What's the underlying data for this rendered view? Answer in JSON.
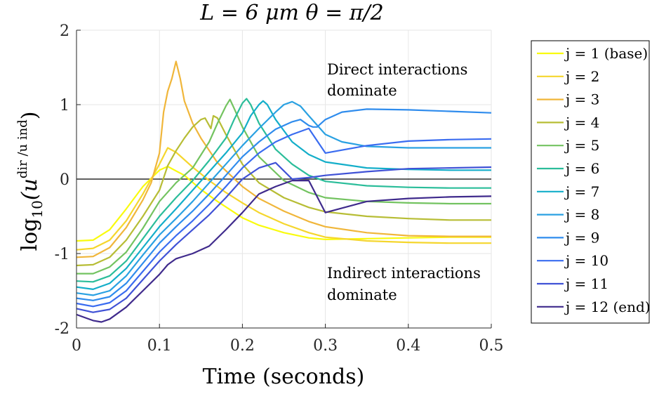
{
  "chart_data": {
    "type": "line",
    "title": "L = 6 μm    θ = π/2",
    "xlabel": "Time (seconds)",
    "ylabel_main": "log",
    "ylabel_sub": "10",
    "ylabel_rest": "(u",
    "ylabel_sup": "dir /u ind",
    "ylabel_close": ")",
    "xlim": [
      0,
      0.5
    ],
    "ylim": [
      -2,
      2
    ],
    "xticks": [
      "0",
      "0.1",
      "0.2",
      "0.3",
      "0.4",
      "0.5"
    ],
    "yticks": [
      "-2",
      "-1",
      "0",
      "1",
      "2"
    ],
    "grid": true,
    "legend_position": "outside-right",
    "annotations": {
      "direct_line1": "Direct interactions",
      "direct_line2": "dominate",
      "indirect_line1": "Indirect interactions",
      "indirect_line2": "dominate"
    },
    "series": [
      {
        "name": "j = 1 (base)",
        "color": "#f9fb0e",
        "x": [
          0,
          0.02,
          0.04,
          0.06,
          0.08,
          0.1,
          0.11,
          0.13,
          0.15,
          0.17,
          0.2,
          0.22,
          0.25,
          0.28,
          0.3,
          0.35,
          0.4,
          0.45,
          0.5
        ],
        "y": [
          -0.83,
          -0.82,
          -0.68,
          -0.4,
          -0.1,
          0.12,
          0.17,
          0.05,
          -0.14,
          -0.3,
          -0.52,
          -0.62,
          -0.72,
          -0.79,
          -0.81,
          -0.8,
          -0.79,
          -0.78,
          -0.78
        ]
      },
      {
        "name": "j = 2",
        "color": "#f5d62d",
        "x": [
          0,
          0.02,
          0.04,
          0.06,
          0.08,
          0.1,
          0.11,
          0.12,
          0.14,
          0.16,
          0.18,
          0.2,
          0.22,
          0.25,
          0.28,
          0.3,
          0.35,
          0.4,
          0.45,
          0.5
        ],
        "y": [
          -0.95,
          -0.93,
          -0.82,
          -0.56,
          -0.2,
          0.2,
          0.42,
          0.36,
          0.16,
          -0.02,
          -0.18,
          -0.32,
          -0.45,
          -0.6,
          -0.72,
          -0.78,
          -0.83,
          -0.85,
          -0.86,
          -0.86
        ]
      },
      {
        "name": "j = 3",
        "color": "#f0b63a",
        "x": [
          0,
          0.02,
          0.04,
          0.06,
          0.08,
          0.09,
          0.1,
          0.105,
          0.11,
          0.115,
          0.12,
          0.125,
          0.13,
          0.14,
          0.15,
          0.17,
          0.2,
          0.22,
          0.25,
          0.28,
          0.3,
          0.35,
          0.4,
          0.45,
          0.5
        ],
        "y": [
          -1.05,
          -1.04,
          -0.92,
          -0.65,
          -0.28,
          -0.05,
          0.35,
          0.9,
          1.18,
          1.35,
          1.58,
          1.35,
          1.05,
          0.75,
          0.55,
          0.22,
          -0.1,
          -0.26,
          -0.43,
          -0.57,
          -0.64,
          -0.72,
          -0.76,
          -0.77,
          -0.77
        ]
      },
      {
        "name": "j = 4",
        "color": "#b7bd35",
        "x": [
          0,
          0.02,
          0.04,
          0.06,
          0.08,
          0.1,
          0.11,
          0.12,
          0.13,
          0.14,
          0.15,
          0.155,
          0.16,
          0.162,
          0.165,
          0.17,
          0.18,
          0.2,
          0.22,
          0.25,
          0.28,
          0.3,
          0.35,
          0.4,
          0.45,
          0.5
        ],
        "y": [
          -1.16,
          -1.15,
          -1.05,
          -0.82,
          -0.5,
          -0.15,
          0.18,
          0.38,
          0.55,
          0.7,
          0.8,
          0.82,
          0.72,
          0.68,
          0.85,
          0.82,
          0.6,
          0.2,
          -0.05,
          -0.25,
          -0.38,
          -0.44,
          -0.5,
          -0.53,
          -0.55,
          -0.55
        ]
      },
      {
        "name": "j = 5",
        "color": "#73c360",
        "x": [
          0,
          0.02,
          0.04,
          0.06,
          0.08,
          0.1,
          0.12,
          0.14,
          0.16,
          0.17,
          0.18,
          0.185,
          0.19,
          0.2,
          0.22,
          0.25,
          0.28,
          0.3,
          0.35,
          0.4,
          0.45,
          0.5
        ],
        "y": [
          -1.27,
          -1.27,
          -1.18,
          -0.98,
          -0.66,
          -0.3,
          -0.05,
          0.15,
          0.5,
          0.75,
          0.98,
          1.07,
          0.95,
          0.7,
          0.3,
          -0.02,
          -0.18,
          -0.25,
          -0.3,
          -0.32,
          -0.33,
          -0.33
        ]
      },
      {
        "name": "j = 6",
        "color": "#2bbd9a",
        "x": [
          0,
          0.02,
          0.04,
          0.06,
          0.08,
          0.1,
          0.12,
          0.14,
          0.16,
          0.18,
          0.19,
          0.2,
          0.205,
          0.21,
          0.22,
          0.24,
          0.26,
          0.28,
          0.3,
          0.35,
          0.4,
          0.45,
          0.5
        ],
        "y": [
          -1.37,
          -1.38,
          -1.3,
          -1.1,
          -0.8,
          -0.5,
          -0.25,
          -0.02,
          0.25,
          0.55,
          0.8,
          1.02,
          1.08,
          1.0,
          0.75,
          0.4,
          0.2,
          0.05,
          -0.03,
          -0.09,
          -0.11,
          -0.12,
          -0.12
        ]
      },
      {
        "name": "j = 7",
        "color": "#13aec9",
        "x": [
          0,
          0.02,
          0.04,
          0.06,
          0.08,
          0.1,
          0.12,
          0.14,
          0.16,
          0.18,
          0.2,
          0.21,
          0.22,
          0.225,
          0.23,
          0.24,
          0.26,
          0.28,
          0.3,
          0.35,
          0.4,
          0.45,
          0.5
        ],
        "y": [
          -1.45,
          -1.48,
          -1.4,
          -1.2,
          -0.92,
          -0.64,
          -0.4,
          -0.15,
          0.1,
          0.35,
          0.62,
          0.85,
          1.0,
          1.05,
          1.0,
          0.8,
          0.5,
          0.33,
          0.23,
          0.15,
          0.13,
          0.12,
          0.12
        ]
      },
      {
        "name": "j = 8",
        "color": "#2aa1e2",
        "x": [
          0,
          0.02,
          0.04,
          0.06,
          0.08,
          0.1,
          0.12,
          0.14,
          0.16,
          0.18,
          0.2,
          0.22,
          0.24,
          0.25,
          0.26,
          0.27,
          0.28,
          0.3,
          0.32,
          0.35,
          0.4,
          0.45,
          0.5
        ],
        "y": [
          -1.53,
          -1.56,
          -1.5,
          -1.3,
          -1.02,
          -0.75,
          -0.53,
          -0.3,
          -0.05,
          0.2,
          0.45,
          0.68,
          0.9,
          1.0,
          1.04,
          0.98,
          0.85,
          0.6,
          0.5,
          0.44,
          0.42,
          0.42,
          0.42
        ]
      },
      {
        "name": "j = 9",
        "color": "#2f8ced",
        "x": [
          0,
          0.02,
          0.04,
          0.06,
          0.08,
          0.1,
          0.12,
          0.14,
          0.16,
          0.18,
          0.2,
          0.22,
          0.24,
          0.26,
          0.27,
          0.28,
          0.285,
          0.29,
          0.3,
          0.32,
          0.35,
          0.4,
          0.45,
          0.5
        ],
        "y": [
          -1.6,
          -1.63,
          -1.58,
          -1.4,
          -1.13,
          -0.86,
          -0.64,
          -0.43,
          -0.2,
          0.05,
          0.3,
          0.5,
          0.67,
          0.77,
          0.8,
          0.72,
          0.7,
          0.7,
          0.8,
          0.9,
          0.94,
          0.93,
          0.91,
          0.89
        ]
      },
      {
        "name": "j = 10",
        "color": "#3a6cf0",
        "x": [
          0,
          0.02,
          0.04,
          0.06,
          0.08,
          0.1,
          0.12,
          0.14,
          0.16,
          0.18,
          0.2,
          0.22,
          0.24,
          0.26,
          0.28,
          0.3,
          0.35,
          0.4,
          0.45,
          0.5
        ],
        "y": [
          -1.67,
          -1.71,
          -1.66,
          -1.5,
          -1.24,
          -0.98,
          -0.76,
          -0.56,
          -0.34,
          -0.1,
          0.15,
          0.35,
          0.5,
          0.6,
          0.68,
          0.35,
          0.45,
          0.51,
          0.53,
          0.54
        ]
      },
      {
        "name": "j = 11",
        "color": "#4052d6",
        "x": [
          0,
          0.02,
          0.04,
          0.06,
          0.08,
          0.1,
          0.12,
          0.14,
          0.16,
          0.18,
          0.2,
          0.22,
          0.24,
          0.26,
          0.28,
          0.3,
          0.35,
          0.4,
          0.45,
          0.5
        ],
        "y": [
          -1.74,
          -1.79,
          -1.75,
          -1.6,
          -1.35,
          -1.1,
          -0.88,
          -0.68,
          -0.48,
          -0.25,
          0.0,
          0.15,
          0.22,
          0.0,
          0.02,
          0.05,
          0.1,
          0.14,
          0.15,
          0.16
        ]
      },
      {
        "name": "j = 12 (end)",
        "color": "#3f2a8c",
        "x": [
          0,
          0.02,
          0.03,
          0.04,
          0.06,
          0.08,
          0.1,
          0.11,
          0.12,
          0.14,
          0.16,
          0.18,
          0.2,
          0.22,
          0.24,
          0.26,
          0.28,
          0.3,
          0.35,
          0.4,
          0.45,
          0.5
        ],
        "y": [
          -1.82,
          -1.9,
          -1.92,
          -1.88,
          -1.72,
          -1.5,
          -1.28,
          -1.15,
          -1.07,
          -1.0,
          -0.9,
          -0.68,
          -0.45,
          -0.2,
          -0.1,
          -0.02,
          -0.02,
          -0.45,
          -0.3,
          -0.26,
          -0.24,
          -0.23
        ]
      }
    ]
  }
}
